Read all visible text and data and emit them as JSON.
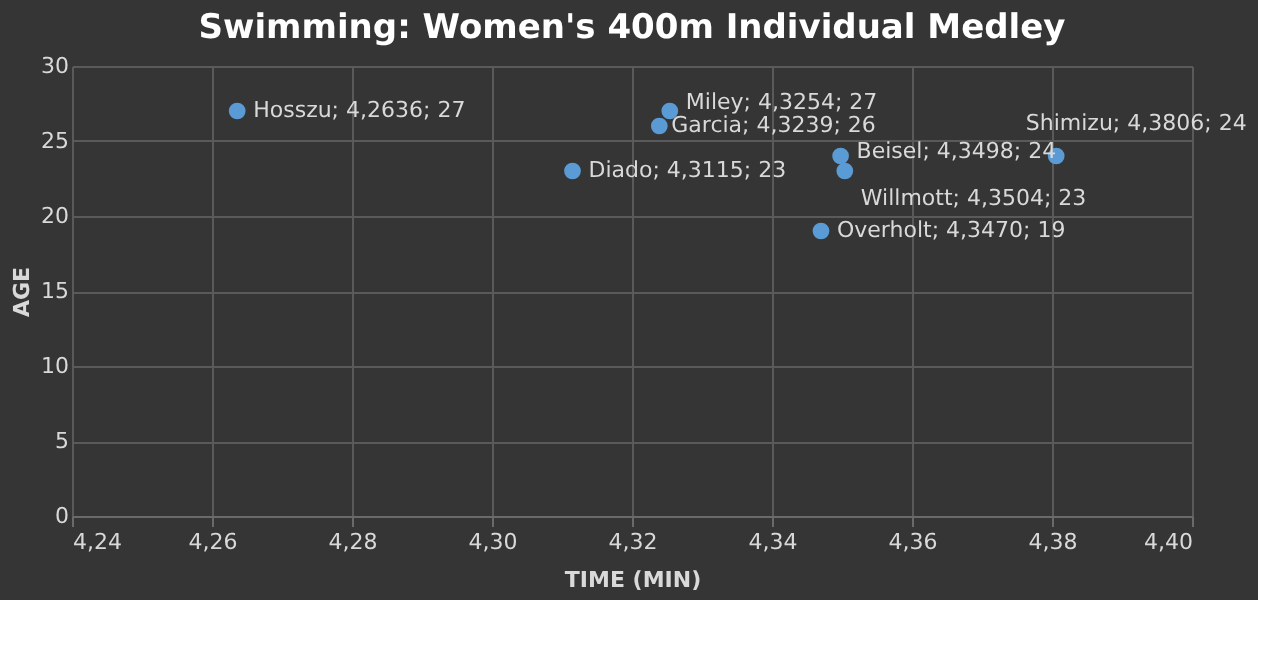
{
  "chart_data": {
    "type": "scatter",
    "title": "Swimming:  Women's 400m Individual Medley",
    "xlabel": "TIME (MIN)",
    "ylabel": "AGE",
    "x": [
      4.2636,
      4.3115,
      4.3254,
      4.3239,
      4.3498,
      4.3504,
      4.347,
      4.3806
    ],
    "series": [
      {
        "color": "#5b9bd5",
        "values": [
          27,
          23,
          27,
          26,
          24,
          23,
          19,
          24
        ]
      }
    ],
    "annotations": [
      {
        "text": "Hosszu; 4,2636; 27",
        "x": 4.2636,
        "y": 27
      },
      {
        "text": "Diado; 4,3115; 23",
        "x": 4.3115,
        "y": 23
      },
      {
        "text": "Miley; 4,3254; 27",
        "x": 4.3254,
        "y": 27
      },
      {
        "text": "Garcia; 4,3239; 26",
        "x": 4.3239,
        "y": 26
      },
      {
        "text": "Beisel; 4,3498; 24",
        "x": 4.3498,
        "y": 24
      },
      {
        "text": "Willmott; 4,3504; 23",
        "x": 4.3504,
        "y": 23
      },
      {
        "text": "Overholt; 4,3470; 19",
        "x": 4.347,
        "y": 19
      },
      {
        "text": "Shimizu; 4,3806; 24",
        "x": 4.3806,
        "y": 24
      }
    ],
    "xlim": [
      4.24,
      4.4
    ],
    "xticks": [
      {
        "value": 4.24,
        "label": "4,24"
      },
      {
        "value": 4.26,
        "label": "4,26"
      },
      {
        "value": 4.28,
        "label": "4,28"
      },
      {
        "value": 4.3,
        "label": "4,30"
      },
      {
        "value": 4.32,
        "label": "4,32"
      },
      {
        "value": 4.34,
        "label": "4,34"
      },
      {
        "value": 4.36,
        "label": "4,36"
      },
      {
        "value": 4.38,
        "label": "4,38"
      },
      {
        "value": 4.4,
        "label": "4,40"
      }
    ],
    "ylim": [
      0,
      30
    ],
    "yticks": [
      0,
      5,
      10,
      15,
      20,
      25,
      30
    ],
    "grid": true,
    "marker": "circle"
  }
}
